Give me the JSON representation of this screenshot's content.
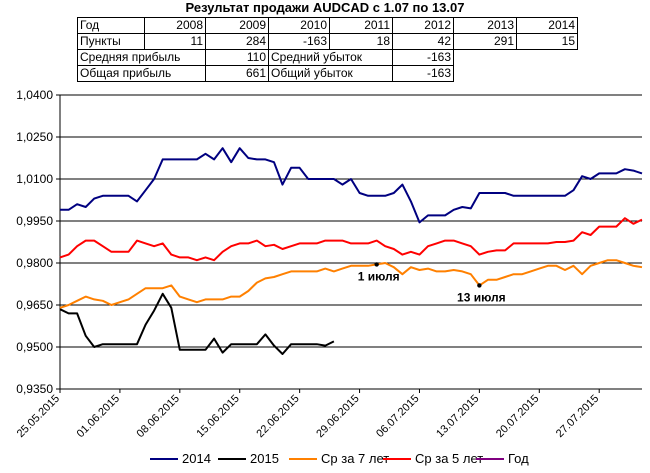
{
  "chart_data": {
    "type": "line",
    "title": "Результат продажи AUDCAD с 1.07 по 13.07",
    "stats_table": {
      "year_label": "Год",
      "years": [
        "2008",
        "2009",
        "2010",
        "2011",
        "2012",
        "2013",
        "2014"
      ],
      "points_label": "Пункты",
      "points": [
        "11",
        "284",
        "-163",
        "18",
        "42",
        "291",
        "15"
      ],
      "avg_profit_label": "Средняя прибыль",
      "avg_profit": "110",
      "avg_loss_label": "Средний убыток",
      "avg_loss": "-163",
      "total_profit_label": "Общая прибыль",
      "total_profit": "661",
      "total_loss_label": "Общий убыток",
      "total_loss": "-163"
    },
    "y_ticks": [
      "0,9350",
      "0,9500",
      "0,9650",
      "0,9800",
      "0,9950",
      "1,0100",
      "1,0250",
      "1,0400"
    ],
    "ylim": [
      0.935,
      1.04
    ],
    "x_ticks": [
      "25.05.2015",
      "01.06.2015",
      "08.06.2015",
      "15.06.2015",
      "22.06.2015",
      "29.06.2015",
      "06.07.2015",
      "13.07.2015",
      "20.07.2015",
      "27.07.2015"
    ],
    "xlim": [
      "2015-05-25",
      "2015-08-01"
    ],
    "grid": "horizontal",
    "legend_position": "bottom",
    "annotations": [
      {
        "text": "1 июля",
        "date": "2015-07-01",
        "y": 0.9795
      },
      {
        "text": "13 июля",
        "date": "2015-07-13",
        "y": 0.972
      }
    ],
    "series": [
      {
        "name": "2014",
        "color": "#000080",
        "x": [
          "2015-05-25",
          "2015-05-26",
          "2015-05-27",
          "2015-05-28",
          "2015-05-29",
          "2015-05-30",
          "2015-05-31",
          "2015-06-01",
          "2015-06-02",
          "2015-06-03",
          "2015-06-04",
          "2015-06-05",
          "2015-06-06",
          "2015-06-07",
          "2015-06-08",
          "2015-06-09",
          "2015-06-10",
          "2015-06-11",
          "2015-06-12",
          "2015-06-13",
          "2015-06-14",
          "2015-06-15",
          "2015-06-16",
          "2015-06-17",
          "2015-06-18",
          "2015-06-19",
          "2015-06-20",
          "2015-06-21",
          "2015-06-22",
          "2015-06-23",
          "2015-06-24",
          "2015-06-25",
          "2015-06-26",
          "2015-06-27",
          "2015-06-28",
          "2015-06-29",
          "2015-06-30",
          "2015-07-01",
          "2015-07-02",
          "2015-07-03",
          "2015-07-04",
          "2015-07-05",
          "2015-07-06",
          "2015-07-07",
          "2015-07-08",
          "2015-07-09",
          "2015-07-10",
          "2015-07-11",
          "2015-07-12",
          "2015-07-13",
          "2015-07-14",
          "2015-07-15",
          "2015-07-16",
          "2015-07-17",
          "2015-07-18",
          "2015-07-19",
          "2015-07-20",
          "2015-07-21",
          "2015-07-22",
          "2015-07-23",
          "2015-07-24",
          "2015-07-25",
          "2015-07-26",
          "2015-07-27",
          "2015-07-28",
          "2015-07-29",
          "2015-07-30",
          "2015-07-31",
          "2015-08-01"
        ],
        "values": [
          0.999,
          0.999,
          1.001,
          1.0,
          1.003,
          1.004,
          1.004,
          1.004,
          1.004,
          1.002,
          1.006,
          1.01,
          1.017,
          1.017,
          1.017,
          1.017,
          1.017,
          1.019,
          1.017,
          1.021,
          1.016,
          1.021,
          1.0175,
          1.017,
          1.017,
          1.016,
          1.008,
          1.014,
          1.014,
          1.01,
          1.01,
          1.01,
          1.01,
          1.008,
          1.01,
          1.005,
          1.004,
          1.004,
          1.004,
          1.005,
          1.008,
          1.002,
          0.9945,
          0.997,
          0.997,
          0.997,
          0.999,
          1.0,
          0.9995,
          1.005,
          1.005,
          1.005,
          1.005,
          1.004,
          1.004,
          1.004,
          1.004,
          1.004,
          1.004,
          1.004,
          1.006,
          1.011,
          1.01,
          1.012,
          1.012,
          1.012,
          1.0135,
          1.013,
          1.012
        ]
      },
      {
        "name": "2015",
        "color": "#000000",
        "x": [
          "2015-05-25",
          "2015-05-26",
          "2015-05-27",
          "2015-05-28",
          "2015-05-29",
          "2015-05-30",
          "2015-05-31",
          "2015-06-01",
          "2015-06-02",
          "2015-06-03",
          "2015-06-04",
          "2015-06-05",
          "2015-06-06",
          "2015-06-07",
          "2015-06-08",
          "2015-06-09",
          "2015-06-10",
          "2015-06-11",
          "2015-06-12",
          "2015-06-13",
          "2015-06-14",
          "2015-06-15",
          "2015-06-16",
          "2015-06-17",
          "2015-06-18",
          "2015-06-19",
          "2015-06-20",
          "2015-06-21",
          "2015-06-22",
          "2015-06-23",
          "2015-06-24",
          "2015-06-25",
          "2015-06-26"
        ],
        "values": [
          0.9635,
          0.962,
          0.962,
          0.954,
          0.95,
          0.951,
          0.951,
          0.951,
          0.951,
          0.951,
          0.958,
          0.963,
          0.969,
          0.964,
          0.949,
          0.949,
          0.949,
          0.949,
          0.953,
          0.948,
          0.951,
          0.951,
          0.951,
          0.951,
          0.9545,
          0.9505,
          0.9475,
          0.951,
          0.951,
          0.951,
          0.951,
          0.9505,
          0.952
        ]
      },
      {
        "name": "Ср за 7 лет",
        "color": "#ff8000",
        "x": [
          "2015-05-25",
          "2015-05-26",
          "2015-05-27",
          "2015-05-28",
          "2015-05-29",
          "2015-05-30",
          "2015-05-31",
          "2015-06-01",
          "2015-06-02",
          "2015-06-03",
          "2015-06-04",
          "2015-06-05",
          "2015-06-06",
          "2015-06-07",
          "2015-06-08",
          "2015-06-09",
          "2015-06-10",
          "2015-06-11",
          "2015-06-12",
          "2015-06-13",
          "2015-06-14",
          "2015-06-15",
          "2015-06-16",
          "2015-06-17",
          "2015-06-18",
          "2015-06-19",
          "2015-06-20",
          "2015-06-21",
          "2015-06-22",
          "2015-06-23",
          "2015-06-24",
          "2015-06-25",
          "2015-06-26",
          "2015-06-27",
          "2015-06-28",
          "2015-06-29",
          "2015-06-30",
          "2015-07-01",
          "2015-07-02",
          "2015-07-03",
          "2015-07-04",
          "2015-07-05",
          "2015-07-06",
          "2015-07-07",
          "2015-07-08",
          "2015-07-09",
          "2015-07-10",
          "2015-07-11",
          "2015-07-12",
          "2015-07-13",
          "2015-07-14",
          "2015-07-15",
          "2015-07-16",
          "2015-07-17",
          "2015-07-18",
          "2015-07-19",
          "2015-07-20",
          "2015-07-21",
          "2015-07-22",
          "2015-07-23",
          "2015-07-24",
          "2015-07-25",
          "2015-07-26",
          "2015-07-27",
          "2015-07-28",
          "2015-07-29",
          "2015-07-30",
          "2015-07-31",
          "2015-08-01"
        ],
        "values": [
          0.964,
          0.965,
          0.9665,
          0.968,
          0.967,
          0.9665,
          0.965,
          0.966,
          0.967,
          0.969,
          0.971,
          0.971,
          0.971,
          0.972,
          0.968,
          0.967,
          0.966,
          0.967,
          0.967,
          0.967,
          0.968,
          0.968,
          0.97,
          0.973,
          0.9745,
          0.975,
          0.976,
          0.977,
          0.977,
          0.977,
          0.977,
          0.978,
          0.977,
          0.978,
          0.979,
          0.979,
          0.979,
          0.9795,
          0.98,
          0.9785,
          0.976,
          0.9785,
          0.9775,
          0.978,
          0.977,
          0.977,
          0.9775,
          0.977,
          0.976,
          0.972,
          0.974,
          0.974,
          0.975,
          0.976,
          0.976,
          0.977,
          0.978,
          0.979,
          0.979,
          0.9775,
          0.979,
          0.976,
          0.979,
          0.98,
          0.981,
          0.981,
          0.98,
          0.979,
          0.9785
        ]
      },
      {
        "name": "Ср за 5 лет",
        "color": "#ff0000",
        "x": [
          "2015-05-25",
          "2015-05-26",
          "2015-05-27",
          "2015-05-28",
          "2015-05-29",
          "2015-05-30",
          "2015-05-31",
          "2015-06-01",
          "2015-06-02",
          "2015-06-03",
          "2015-06-04",
          "2015-06-05",
          "2015-06-06",
          "2015-06-07",
          "2015-06-08",
          "2015-06-09",
          "2015-06-10",
          "2015-06-11",
          "2015-06-12",
          "2015-06-13",
          "2015-06-14",
          "2015-06-15",
          "2015-06-16",
          "2015-06-17",
          "2015-06-18",
          "2015-06-19",
          "2015-06-20",
          "2015-06-21",
          "2015-06-22",
          "2015-06-23",
          "2015-06-24",
          "2015-06-25",
          "2015-06-26",
          "2015-06-27",
          "2015-06-28",
          "2015-06-29",
          "2015-06-30",
          "2015-07-01",
          "2015-07-02",
          "2015-07-03",
          "2015-07-04",
          "2015-07-05",
          "2015-07-06",
          "2015-07-07",
          "2015-07-08",
          "2015-07-09",
          "2015-07-10",
          "2015-07-11",
          "2015-07-12",
          "2015-07-13",
          "2015-07-14",
          "2015-07-15",
          "2015-07-16",
          "2015-07-17",
          "2015-07-18",
          "2015-07-19",
          "2015-07-20",
          "2015-07-21",
          "2015-07-22",
          "2015-07-23",
          "2015-07-24",
          "2015-07-25",
          "2015-07-26",
          "2015-07-27",
          "2015-07-28",
          "2015-07-29",
          "2015-07-30",
          "2015-07-31",
          "2015-08-01"
        ],
        "values": [
          0.982,
          0.983,
          0.986,
          0.988,
          0.988,
          0.986,
          0.984,
          0.984,
          0.984,
          0.988,
          0.987,
          0.986,
          0.987,
          0.983,
          0.982,
          0.982,
          0.981,
          0.982,
          0.981,
          0.984,
          0.986,
          0.987,
          0.987,
          0.988,
          0.986,
          0.9865,
          0.985,
          0.986,
          0.987,
          0.987,
          0.987,
          0.988,
          0.988,
          0.988,
          0.987,
          0.987,
          0.987,
          0.988,
          0.986,
          0.985,
          0.983,
          0.984,
          0.983,
          0.986,
          0.987,
          0.988,
          0.988,
          0.987,
          0.986,
          0.983,
          0.984,
          0.9845,
          0.9845,
          0.987,
          0.987,
          0.987,
          0.987,
          0.987,
          0.9875,
          0.9875,
          0.988,
          0.991,
          0.99,
          0.993,
          0.993,
          0.993,
          0.996,
          0.994,
          0.9955
        ]
      },
      {
        "name": "Год",
        "color": "#800080",
        "x": [],
        "values": []
      }
    ]
  }
}
